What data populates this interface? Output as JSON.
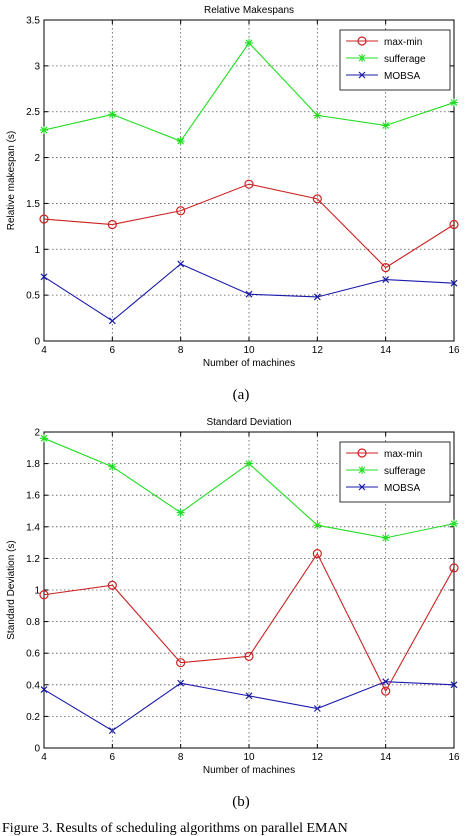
{
  "figure": {
    "caption": "Figure 3.   Results of scheduling algorithms on parallel EMAN"
  },
  "chart_data": [
    {
      "type": "line",
      "panel_label": "(a)",
      "title": "Relative Makespans",
      "xlabel": "Number of machines",
      "ylabel": "Relative makespan (s)",
      "xlim": [
        4,
        16
      ],
      "ylim": [
        0,
        3.5
      ],
      "xticks": [
        4,
        6,
        8,
        10,
        12,
        14,
        16
      ],
      "yticks": [
        0,
        0.5,
        1,
        1.5,
        2,
        2.5,
        3,
        3.5
      ],
      "grid": true,
      "legend": "top-right",
      "x": [
        4,
        6,
        8,
        10,
        12,
        14,
        16
      ],
      "series": [
        {
          "name": "max-min",
          "color": "#cc2222",
          "marker": "circle",
          "values": [
            1.33,
            1.27,
            1.42,
            1.71,
            1.55,
            0.8,
            1.27
          ]
        },
        {
          "name": "sufferage",
          "color": "#22dd22",
          "marker": "star",
          "values": [
            2.3,
            2.47,
            2.18,
            3.25,
            2.46,
            2.35,
            2.6
          ]
        },
        {
          "name": "MOBSA",
          "color": "#1a1aaa",
          "marker": "x",
          "values": [
            0.7,
            0.22,
            0.84,
            0.51,
            0.48,
            0.67,
            0.63
          ]
        }
      ]
    },
    {
      "type": "line",
      "panel_label": "(b)",
      "title": "Standard Deviation",
      "xlabel": "Number of machines",
      "ylabel": "Standard Deviation (s)",
      "xlim": [
        4,
        16
      ],
      "ylim": [
        0,
        2
      ],
      "xticks": [
        4,
        6,
        8,
        10,
        12,
        14,
        16
      ],
      "yticks": [
        0,
        0.2,
        0.4,
        0.6,
        0.8,
        1,
        1.2,
        1.4,
        1.6,
        1.8,
        2
      ],
      "grid": true,
      "legend": "top-right",
      "x": [
        4,
        6,
        8,
        10,
        12,
        14,
        16
      ],
      "series": [
        {
          "name": "max-min",
          "color": "#cc2222",
          "marker": "circle",
          "values": [
            0.97,
            1.03,
            0.54,
            0.58,
            1.23,
            0.36,
            1.14
          ]
        },
        {
          "name": "sufferage",
          "color": "#22dd22",
          "marker": "star",
          "values": [
            1.96,
            1.78,
            1.49,
            1.8,
            1.41,
            1.33,
            1.42
          ]
        },
        {
          "name": "MOBSA",
          "color": "#1a1aaa",
          "marker": "x",
          "values": [
            0.37,
            0.11,
            0.41,
            0.33,
            0.25,
            0.42,
            0.4
          ]
        }
      ]
    }
  ]
}
